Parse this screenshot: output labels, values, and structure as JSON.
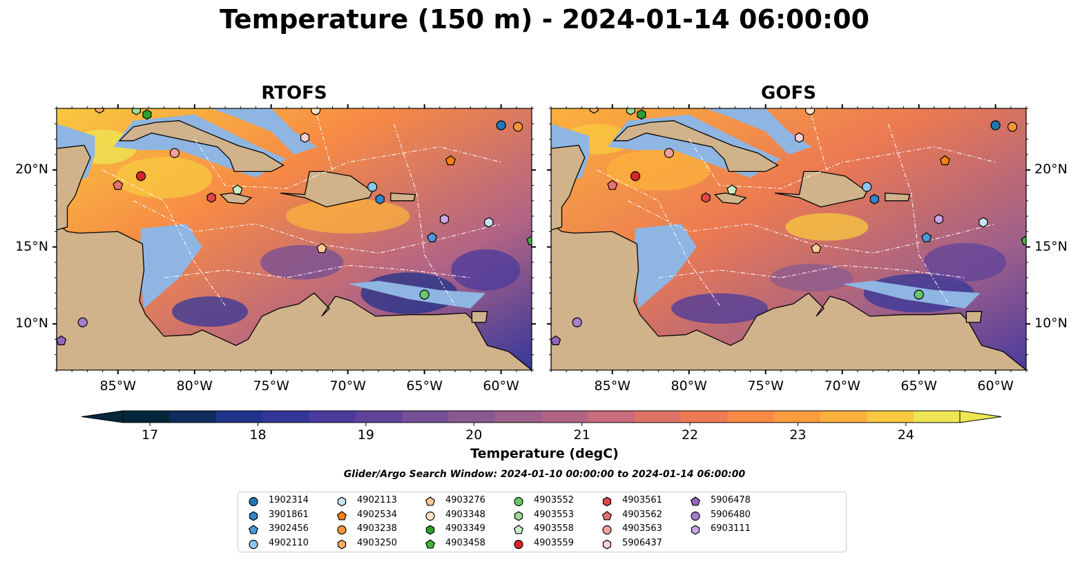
{
  "title": "Temperature (150 m) - 2024-01-14 06:00:00",
  "panels": [
    {
      "title": "RTOFS"
    },
    {
      "title": "GOFS"
    }
  ],
  "lon_ticks": [
    "85°W",
    "80°W",
    "75°W",
    "70°W",
    "65°W",
    "60°W"
  ],
  "lat_ticks": [
    "20°N",
    "15°N",
    "10°N"
  ],
  "map_extent": {
    "lon": [
      -89,
      -58
    ],
    "lat": [
      7,
      24
    ]
  },
  "colorbar": {
    "label": "Temperature (degC)",
    "ticks": [
      "17",
      "18",
      "19",
      "20",
      "21",
      "22",
      "23",
      "24"
    ],
    "range": [
      16.75,
      24.5
    ],
    "extend": "both",
    "colors": [
      "#04263a",
      "#0f2c5e",
      "#20338a",
      "#34379a",
      "#4a3b9c",
      "#5f4399",
      "#744f95",
      "#895990",
      "#9d5f8b",
      "#b26485",
      "#c96b7b",
      "#dc7365",
      "#ec7a52",
      "#f78a45",
      "#fc9c3e",
      "#fcb13c",
      "#f8c93f",
      "#eee753"
    ]
  },
  "search_window": "Glider/Argo Search Window: 2024-01-10 00:00:00 to 2024-01-14 06:00:00",
  "colors": {
    "land": "#d0b38b",
    "shelf": "#8fb5e2",
    "pacific": "#062536"
  },
  "floats": [
    {
      "id": "1902314",
      "marker": "circle",
      "color": "#1f77b4",
      "lon": -60.0,
      "lat": 22.9
    },
    {
      "id": "3901861",
      "marker": "hexagon",
      "color": "#2f86c9",
      "lon": -67.9,
      "lat": 18.1
    },
    {
      "id": "3902456",
      "marker": "pentagon",
      "color": "#4a9ad8",
      "lon": -64.5,
      "lat": 15.6
    },
    {
      "id": "4902110",
      "marker": "circle",
      "color": "#8ec6f0",
      "lon": -68.4,
      "lat": 18.9
    },
    {
      "id": "4902113",
      "marker": "hexagon",
      "color": "#c8e4f8",
      "lon": -60.8,
      "lat": 16.6
    },
    {
      "id": "4902534",
      "marker": "pentagon",
      "color": "#ff7f0e",
      "lon": -63.3,
      "lat": 20.6
    },
    {
      "id": "4903238",
      "marker": "circle",
      "color": "#ff9436",
      "lon": -58.9,
      "lat": 22.8
    },
    {
      "id": "4903250",
      "marker": "hexagon",
      "color": "#ffae68",
      "lon": -86.2,
      "lat": 24.0
    },
    {
      "id": "4903276",
      "marker": "pentagon",
      "color": "#ffc995",
      "lon": -71.7,
      "lat": 14.9
    },
    {
      "id": "4903348",
      "marker": "circle",
      "color": "#ffe3c8",
      "lon": -72.1,
      "lat": 23.9
    },
    {
      "id": "4903349",
      "marker": "hexagon",
      "color": "#2ca02c",
      "lon": -83.1,
      "lat": 23.6
    },
    {
      "id": "4903458",
      "marker": "pentagon",
      "color": "#3fb43f",
      "lon": -58.0,
      "lat": 15.4
    },
    {
      "id": "4903552",
      "marker": "circle",
      "color": "#6cc66c",
      "lon": -65.0,
      "lat": 11.9
    },
    {
      "id": "4903553",
      "marker": "hexagon",
      "color": "#9bdc9b",
      "lon": -83.8,
      "lat": 23.9
    },
    {
      "id": "4903558",
      "marker": "pentagon",
      "color": "#c8f0c8",
      "lon": -77.2,
      "lat": 18.7
    },
    {
      "id": "4903559",
      "marker": "circle",
      "color": "#d62728",
      "lon": -83.5,
      "lat": 19.6
    },
    {
      "id": "4903561",
      "marker": "hexagon",
      "color": "#e0474a",
      "lon": -78.9,
      "lat": 18.2
    },
    {
      "id": "4903562",
      "marker": "pentagon",
      "color": "#eb6f72",
      "lon": -85.0,
      "lat": 19.0
    },
    {
      "id": "4903563",
      "marker": "circle",
      "color": "#f2a0a0",
      "lon": -81.3,
      "lat": 21.1
    },
    {
      "id": "5906437",
      "marker": "hexagon",
      "color": "#fad0d0",
      "lon": -72.8,
      "lat": 22.1
    },
    {
      "id": "5906478",
      "marker": "pentagon",
      "color": "#9467bd",
      "lon": -88.7,
      "lat": 8.9
    },
    {
      "id": "5906480",
      "marker": "circle",
      "color": "#a67fcf",
      "lon": -87.3,
      "lat": 10.1
    },
    {
      "id": "6903111",
      "marker": "hexagon",
      "color": "#c9a8e6",
      "lon": -63.7,
      "lat": 16.8
    }
  ]
}
